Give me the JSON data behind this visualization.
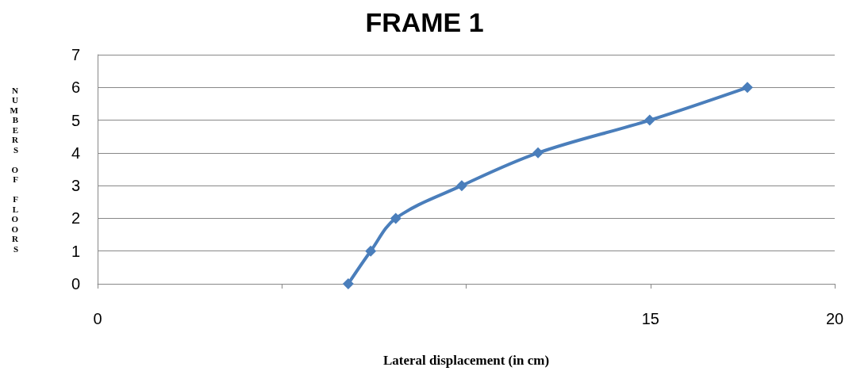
{
  "chart_data": {
    "type": "line",
    "title": "FRAME 1",
    "xlabel": "Lateral displacement (in cm)",
    "ylabel": "NUMBERS OF FLOORS",
    "x": [
      6.8,
      7.41,
      8.09,
      9.88,
      11.95,
      14.98,
      17.63
    ],
    "series": [
      {
        "color": "#4a7ebb",
        "values": [
          0,
          1,
          2,
          3,
          4,
          5,
          6
        ]
      }
    ],
    "xlim": [
      0,
      20
    ],
    "xticks": [
      0,
      {
        "value": 5,
        "label": null
      },
      {
        "value": 10,
        "label": null
      },
      15,
      20
    ],
    "ylim": [
      0,
      7
    ],
    "yticks": [
      0,
      1,
      2,
      3,
      4,
      5,
      6,
      7
    ],
    "grid": "y",
    "marker": "diamond",
    "line_style": "solid"
  }
}
